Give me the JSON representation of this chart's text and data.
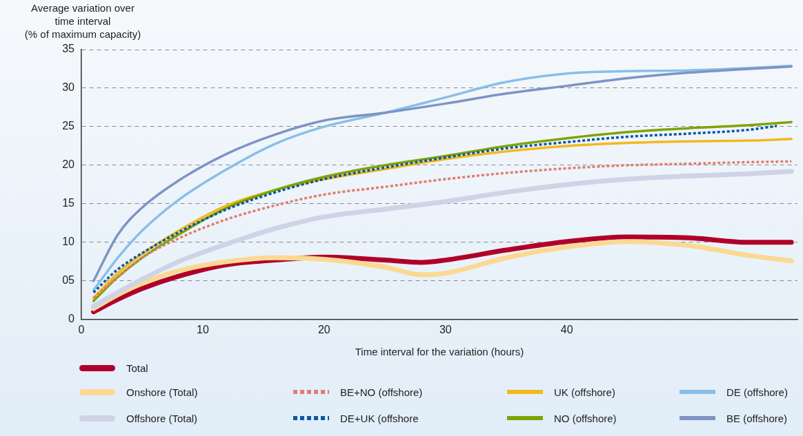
{
  "chart_data": {
    "type": "line",
    "ylabel": "Average variation over\ntime interval\n(% of maximum capacity)",
    "xlabel": "Time interval for the variation (hours)",
    "x": [
      1,
      3,
      5,
      8,
      12,
      16,
      20,
      25,
      30,
      35,
      40,
      45,
      50,
      55,
      58.5
    ],
    "xlim": [
      0,
      59
    ],
    "xticks": [
      0,
      10,
      20,
      30,
      40
    ],
    "ylim": [
      0,
      35
    ],
    "yticks": [
      0,
      {
        "value": 5,
        "label": "05"
      },
      10,
      15,
      20,
      25,
      30,
      35
    ],
    "grid": "y",
    "legend": "bottom",
    "marker": "none",
    "series": [
      {
        "name": "Total",
        "color": "#b0002a",
        "x": [
          1,
          3,
          5,
          8,
          12,
          16,
          20,
          25,
          28,
          30,
          35,
          40,
          45,
          50,
          55,
          58.5
        ],
        "values": [
          1.0,
          2.6,
          4.0,
          5.6,
          7.1,
          7.7,
          8.1,
          7.7,
          7.4,
          7.7,
          9.0,
          10.1,
          10.7,
          10.6,
          10.0,
          10.0
        ]
      },
      {
        "name": "Onshore (Total)",
        "color": "#fbd993",
        "x": [
          1,
          3,
          5,
          8,
          12,
          16,
          20,
          25,
          28,
          30,
          35,
          40,
          45,
          50,
          55,
          58.5
        ],
        "values": [
          1.4,
          3.2,
          4.7,
          6.3,
          7.5,
          8.0,
          7.8,
          6.8,
          5.8,
          6.0,
          8.0,
          9.4,
          10.1,
          9.6,
          8.3,
          7.6
        ]
      },
      {
        "name": "Offshore (Total)",
        "color": "#cfd3e6",
        "values": [
          1.7,
          3.5,
          5.2,
          7.5,
          9.8,
          11.8,
          13.3,
          14.3,
          15.3,
          16.5,
          17.5,
          18.2,
          18.6,
          18.9,
          19.2
        ]
      },
      {
        "name": "BE+NO (offshore)",
        "color": "#e27d6e",
        "line_style": "dotted",
        "values": [
          2.8,
          5.5,
          8.0,
          10.5,
          13.0,
          14.8,
          16.2,
          17.2,
          18.2,
          19.0,
          19.6,
          20.0,
          20.2,
          20.4,
          20.5
        ]
      },
      {
        "name": "DE+UK (offshore",
        "color": "#0b58a0",
        "line_style": "dotted",
        "x": [
          1,
          3,
          5,
          8,
          12,
          16,
          20,
          25,
          30,
          35,
          40,
          45,
          50,
          55,
          57.3
        ],
        "values": [
          3.5,
          6.5,
          8.6,
          11.3,
          14.3,
          16.5,
          18.2,
          19.7,
          21.0,
          22.2,
          23.0,
          23.7,
          24.1,
          24.6,
          25.1
        ]
      },
      {
        "name": "UK (offshore)",
        "color": "#f5b81c",
        "values": [
          2.8,
          6.0,
          8.5,
          11.5,
          14.8,
          16.8,
          18.2,
          19.5,
          20.8,
          21.8,
          22.5,
          22.9,
          23.1,
          23.2,
          23.4
        ]
      },
      {
        "name": "NO (offshore)",
        "color": "#7fa300",
        "values": [
          2.4,
          5.5,
          8.0,
          11.0,
          14.5,
          16.8,
          18.5,
          20.0,
          21.2,
          22.5,
          23.5,
          24.3,
          24.8,
          25.2,
          25.6
        ]
      },
      {
        "name": "DE (offshore)",
        "color": "#87bfe8",
        "values": [
          3.8,
          8.0,
          11.5,
          15.5,
          19.5,
          22.8,
          25.0,
          26.8,
          28.8,
          30.8,
          31.9,
          32.2,
          32.3,
          32.6,
          32.9
        ]
      },
      {
        "name": "BE (offshore)",
        "color": "#7f93c4",
        "values": [
          5.0,
          11.0,
          14.5,
          18.0,
          21.5,
          24.0,
          25.8,
          26.8,
          28.0,
          29.3,
          30.3,
          31.3,
          32.0,
          32.5,
          32.8
        ]
      }
    ]
  }
}
